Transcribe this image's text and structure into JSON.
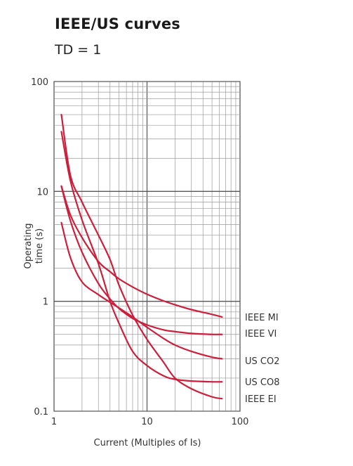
{
  "title": "IEEE/US curves",
  "subtitle": "TD = 1",
  "chart_data": {
    "type": "line",
    "xscale": "log",
    "yscale": "log",
    "xlim": [
      1,
      100
    ],
    "ylim": [
      0.1,
      100
    ],
    "xlabel": "Current (Multiples of Is)",
    "ylabel": "Operating time (s)",
    "ylabel_lines": [
      "Operating",
      "time (s)"
    ],
    "xticks": [
      "1",
      "10",
      "100"
    ],
    "yticks": [
      "0.1",
      "1",
      "10",
      "100"
    ],
    "grid": true,
    "line_color": "#cc1f3c",
    "series": [
      {
        "name": "IEEE MI",
        "x": [
          1.2,
          1.5,
          2,
          3,
          4,
          5,
          7,
          10,
          15,
          20,
          30,
          50,
          64
        ],
        "y": [
          11.2,
          6.1,
          3.8,
          2.3,
          1.86,
          1.6,
          1.35,
          1.16,
          1.01,
          0.93,
          0.84,
          0.76,
          0.72
        ]
      },
      {
        "name": "IEEE VI",
        "x": [
          1.2,
          1.5,
          2,
          3,
          4,
          5,
          7,
          10,
          15,
          20,
          30,
          50,
          64
        ],
        "y": [
          11.1,
          5.4,
          2.8,
          1.45,
          1.05,
          0.86,
          0.7,
          0.61,
          0.55,
          0.53,
          0.51,
          0.5,
          0.5
        ]
      },
      {
        "name": "US CO2",
        "x": [
          1.2,
          1.5,
          2,
          3,
          4,
          5,
          7,
          10,
          15,
          20,
          30,
          50,
          64
        ],
        "y": [
          5.2,
          2.5,
          1.5,
          1.15,
          0.98,
          0.87,
          0.72,
          0.58,
          0.46,
          0.4,
          0.35,
          0.31,
          0.3
        ]
      },
      {
        "name": "US CO8",
        "x": [
          1.2,
          1.5,
          2,
          3,
          4,
          5,
          7,
          10,
          15,
          20,
          30,
          50,
          64
        ],
        "y": [
          35,
          12.5,
          5.5,
          2.2,
          1.0,
          0.63,
          0.35,
          0.26,
          0.21,
          0.195,
          0.188,
          0.185,
          0.185
        ]
      },
      {
        "name": "IEEE EI",
        "x": [
          1.2,
          1.5,
          2,
          3,
          4,
          5,
          7,
          10,
          15,
          20,
          30,
          50,
          64
        ],
        "y": [
          50,
          14,
          8,
          4,
          2.4,
          1.4,
          0.75,
          0.45,
          0.28,
          0.2,
          0.16,
          0.135,
          0.13
        ]
      }
    ]
  }
}
